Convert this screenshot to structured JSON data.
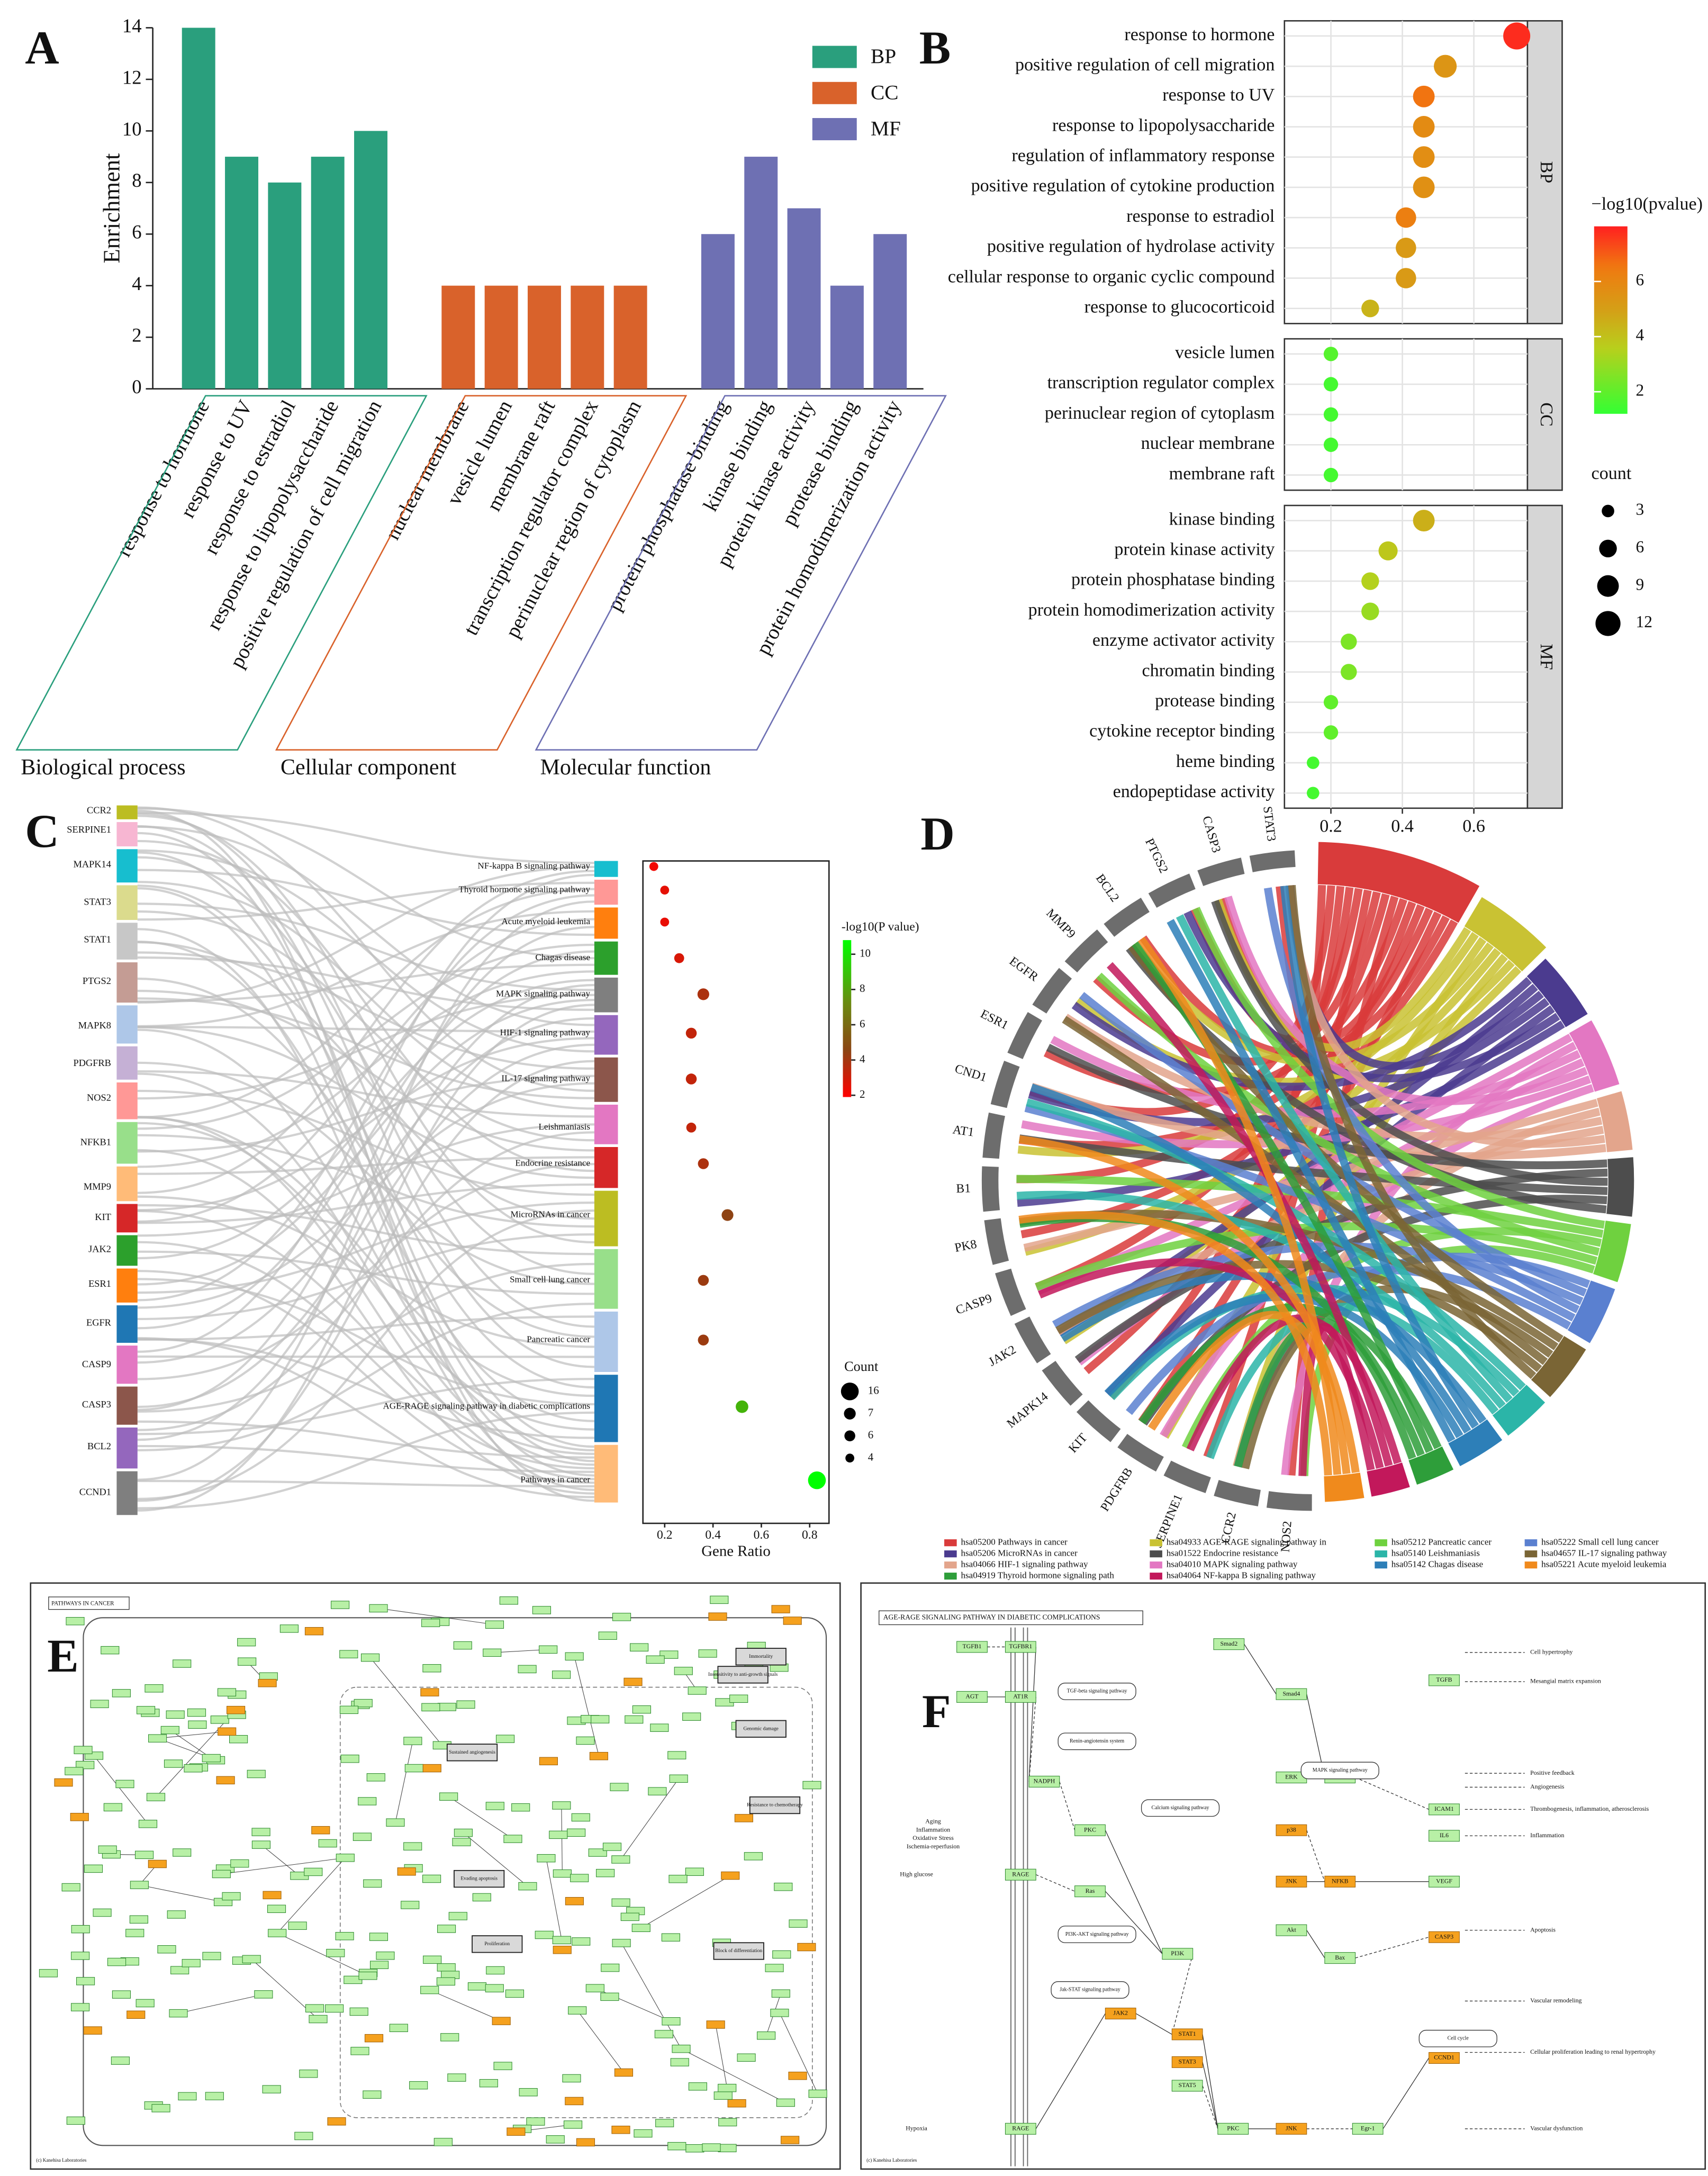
{
  "chart_data": [
    {
      "type": "bar",
      "panel": "A",
      "ylabel": "Enrichment",
      "categories": [
        "response to hormone",
        "response to UV",
        "response to estradiol",
        "response to lipopolysaccharide",
        "positive regulation of cell migration",
        "nuclear membrane",
        "vesicle lumen",
        "membrane raft",
        "transcription regulator complex",
        "perinuclear region of cytoplasm",
        "protein phosphatase binding",
        "kinase binding",
        "protein kinase activity",
        "protease binding",
        "protein homodimerization activity"
      ],
      "series": [
        {
          "name": "BP",
          "color": "#2a9f7d",
          "values": [
            14,
            9,
            8,
            9,
            10,
            null,
            null,
            null,
            null,
            null,
            null,
            null,
            null,
            null,
            null
          ]
        },
        {
          "name": "CC",
          "color": "#d9622b",
          "values": [
            null,
            null,
            null,
            null,
            null,
            4,
            4,
            4,
            4,
            4,
            null,
            null,
            null,
            null,
            null
          ]
        },
        {
          "name": "MF",
          "color": "#6e70b3",
          "values": [
            null,
            null,
            null,
            null,
            null,
            null,
            null,
            null,
            null,
            null,
            6,
            9,
            7,
            4,
            6
          ]
        }
      ],
      "groups": [
        "Biological process",
        "Cellular component",
        "Molecular function"
      ],
      "ylim": [
        0,
        14
      ],
      "yticks": [
        0,
        2,
        4,
        6,
        8,
        10,
        12,
        14
      ],
      "legend": "upper right"
    },
    {
      "type": "dot",
      "panel": "B",
      "facets": [
        {
          "name": "BP",
          "categories": [
            "response to hormone",
            "positive regulation of cell migration",
            "response to UV",
            "response to lipopolysaccharide",
            "regulation of inflammatory response",
            "positive regulation of cytokine production",
            "response to estradiol",
            "positive regulation of hydrolase activity",
            "cellular response to organic cyclic compound",
            "response to glucocorticoid"
          ],
          "x": [
            0.72,
            0.52,
            0.46,
            0.46,
            0.46,
            0.46,
            0.41,
            0.41,
            0.41,
            0.31
          ],
          "pvalue": [
            7.8,
            5.4,
            6.6,
            5.8,
            5.7,
            5.6,
            6.3,
            5.2,
            5.2,
            4.4
          ],
          "count": [
            14,
            10,
            9,
            9,
            9,
            9,
            8,
            8,
            8,
            6
          ]
        },
        {
          "name": "CC",
          "categories": [
            "vesicle lumen",
            "transcription regulator complex",
            "perinuclear region of cytoplasm",
            "nuclear membrane",
            "membrane raft"
          ],
          "x": [
            0.2,
            0.2,
            0.2,
            0.2,
            0.2
          ],
          "pvalue": [
            1.8,
            1.5,
            1.5,
            1.5,
            1.5
          ],
          "count": [
            4,
            4,
            4,
            4,
            4
          ]
        },
        {
          "name": "MF",
          "categories": [
            "kinase binding",
            "protein kinase activity",
            "protein phosphatase binding",
            "protein homodimerization activity",
            "enzyme activator activity",
            "chromatin binding",
            "protease binding",
            "cytokine receptor binding",
            "heme binding",
            "endopeptidase activity"
          ],
          "x": [
            0.46,
            0.36,
            0.31,
            0.31,
            0.25,
            0.25,
            0.2,
            0.2,
            0.15,
            0.15
          ],
          "pvalue": [
            4.5,
            3.8,
            3.5,
            3,
            2.5,
            2.5,
            2,
            2,
            1.5,
            1.5
          ],
          "count": [
            9,
            7,
            6,
            6,
            5,
            5,
            4,
            4,
            3,
            3
          ]
        }
      ],
      "xlim": [
        0.07,
        0.75
      ],
      "xticks": [
        0.2,
        0.4,
        0.6
      ],
      "grid": true,
      "color_title": "−log10(pvalue)",
      "colorlim": [
        1.2,
        8
      ],
      "color_ticks": [
        2,
        4,
        6
      ],
      "size_title": "count",
      "size_ticks": [
        3,
        6,
        9,
        12
      ]
    },
    {
      "type": "sankey_dot",
      "panel": "C",
      "genes": [
        "CCR2",
        "SERPINE1",
        "MAPK14",
        "STAT3",
        "STAT1",
        "PTGS2",
        "MAPK8",
        "PDGFRB",
        "NOS2",
        "NFKB1",
        "MMP9",
        "KIT",
        "JAK2",
        "ESR1",
        "EGFR",
        "CASP9",
        "CASP3",
        "BCL2",
        "CCND1"
      ],
      "gene_colors": [
        "#bcbd22",
        "#f7b6d2",
        "#17becf",
        "#dbdb8d",
        "#c7c7c7",
        "#c49c94",
        "#aec7e8",
        "#c5b0d5",
        "#ff9896",
        "#98df8a",
        "#ffbb78",
        "#d62728",
        "#2ca02c",
        "#ff7f0e",
        "#1f77b4",
        "#e377c2",
        "#8c564b",
        "#9467bd",
        "#7f7f7f"
      ],
      "pathways": [
        "NF-kappa B signaling pathway",
        "Thyroid hormone signaling pathway",
        "Acute myeloid leukemia",
        "Chagas disease",
        "MAPK signaling pathway",
        "HIF-1 signaling pathway",
        "IL-17 signaling pathway",
        "Leishmaniasis",
        "Endocrine resistance",
        "MicroRNAs in cancer",
        "Small cell lung cancer",
        "Pancreatic cancer",
        "AGE-RAGE signaling pathway in diabetic complications",
        "Pathways in cancer"
      ],
      "pathway_colors": [
        "#17becf",
        "#ff9896",
        "#ff7f0e",
        "#2ca02c",
        "#7f7f7f",
        "#9467bd",
        "#8c564b",
        "#e377c2",
        "#d62728",
        "#bcbd22",
        "#98df8a",
        "#aec7e8",
        "#1f77b4",
        "#ffbb78"
      ],
      "x": [
        0.155,
        0.2,
        0.2,
        0.26,
        0.36,
        0.31,
        0.31,
        0.31,
        0.36,
        0.46,
        0.36,
        0.36,
        0.52,
        0.83
      ],
      "pvalue": [
        2.2,
        2.5,
        2.4,
        2.8,
        3.8,
        3.3,
        3.3,
        3.3,
        3.8,
        4.5,
        4.2,
        4.2,
        8.5,
        11
      ],
      "count": [
        4,
        4,
        4,
        5,
        7,
        6,
        6,
        5,
        6,
        7,
        6,
        6,
        8,
        16
      ],
      "xlabel": "Gene Ratio",
      "xlim": [
        0.11,
        0.88
      ],
      "xticks": [
        0.2,
        0.4,
        0.6,
        0.8
      ],
      "color_title": "-log10(P value)",
      "colorlim": [
        1.9,
        10.8
      ],
      "color_ticks": [
        2,
        4,
        6,
        8,
        10
      ],
      "size_title": "Count",
      "size_ticks": [
        16,
        7,
        6,
        4
      ]
    },
    {
      "type": "chord",
      "panel": "D",
      "genes": [
        "STAT3",
        "CASP3",
        "PTGS2",
        "BCL2",
        "MMP9",
        "EGFR",
        "ESR1",
        "CND1",
        "AT1",
        "B1",
        "PK8",
        "CASP9",
        "JAK2",
        "MAPK14",
        "KIT",
        "PDGFRB",
        "SERPINE1",
        "CCR2",
        "NOS2"
      ],
      "gene_color": "#6d6d6d",
      "pathways": [
        {
          "name": "hsa05200 Pathways in cancer",
          "color": "#d93b3b"
        },
        {
          "name": "hsa05206 MicroRNAs in cancer",
          "color": "#4b3b8f"
        },
        {
          "name": "hsa04066 HIF-1 signaling pathway",
          "color": "#e3a58c"
        },
        {
          "name": "hsa04919 Thyroid hormone signaling path",
          "color": "#2e9e3a"
        },
        {
          "name": "hsa04933 AGE-RAGE signaling pathway in",
          "color": "#c9c233"
        },
        {
          "name": "hsa01522 Endocrine resistance",
          "color": "#4d4d4d"
        },
        {
          "name": "hsa04010 MAPK signaling pathway",
          "color": "#e377c2"
        },
        {
          "name": "hsa04064 NF-kappa B signaling pathway",
          "color": "#c2185b"
        },
        {
          "name": "hsa05212 Pancreatic cancer",
          "color": "#6fd13f"
        },
        {
          "name": "hsa05140 Leishmaniasis",
          "color": "#2bb5a8"
        },
        {
          "name": "hsa05142 Chagas disease",
          "color": "#2d7fb8"
        },
        {
          "name": "hsa05222 Small cell lung cancer",
          "color": "#5a80d0"
        },
        {
          "name": "hsa04657 IL-17 signaling pathway",
          "color": "#7a6535"
        },
        {
          "name": "hsa05221 Acute myeloid leukemia",
          "color": "#f08a1c"
        }
      ]
    }
  ],
  "diagrams": [
    {
      "panel": "E",
      "title": "PATHWAYS IN CANCER",
      "processes": [
        "Evading apoptosis",
        "Proliferation",
        "Sustained angiogenesis",
        "Genomic damage",
        "Insensitivity to anti-growth signals",
        "Resistance to chemotherapy",
        "Block of differentiation",
        "Immortality"
      ],
      "footer": "(c) Kanehisa Laboratories"
    },
    {
      "panel": "F",
      "title": "AGE-RAGE SIGNALING PATHWAY IN DIABETIC COMPLICATIONS",
      "nodes": [
        {
          "label": "TGFB1",
          "highlight": false
        },
        {
          "label": "TGFBR1",
          "highlight": false
        },
        {
          "label": "AGT",
          "highlight": false
        },
        {
          "label": "AT1R",
          "highlight": false
        },
        {
          "label": "Smad2",
          "highlight": false
        },
        {
          "label": "Smad4",
          "highlight": false
        },
        {
          "label": "NADPH",
          "highlight": false
        },
        {
          "label": "PKC",
          "highlight": false
        },
        {
          "label": "Ras",
          "highlight": false
        },
        {
          "label": "PI3K",
          "highlight": false
        },
        {
          "label": "Akt",
          "highlight": false
        },
        {
          "label": "ERK",
          "highlight": false
        },
        {
          "label": "p38",
          "highlight": true
        },
        {
          "label": "JNK",
          "highlight": true
        },
        {
          "label": "NFKB",
          "highlight": true
        },
        {
          "label": "AP-1",
          "highlight": false
        },
        {
          "label": "STAT1",
          "highlight": true
        },
        {
          "label": "STAT3",
          "highlight": true
        },
        {
          "label": "STAT5",
          "highlight": false
        },
        {
          "label": "JAK2",
          "highlight": true
        },
        {
          "label": "CASP3",
          "highlight": true
        },
        {
          "label": "Bax",
          "highlight": false
        },
        {
          "label": "VEGF",
          "highlight": false
        },
        {
          "label": "TGFB",
          "highlight": false
        },
        {
          "label": "IL6",
          "highlight": false
        },
        {
          "label": "ICAM1",
          "highlight": false
        },
        {
          "label": "PKC",
          "highlight": false
        },
        {
          "label": "JNK",
          "highlight": true
        },
        {
          "label": "Egr-1",
          "highlight": false
        },
        {
          "label": "CCND1",
          "highlight": true
        },
        {
          "label": "RAGE",
          "highlight": false
        },
        {
          "label": "RAGE",
          "highlight": false
        }
      ],
      "pathways": [
        "TGF-beta signaling pathway",
        "Renin-angiotensin system",
        "Calcium signaling pathway",
        "MAPK signaling pathway",
        "PI3K-AKT signaling pathway",
        "Jak-STAT signaling pathway",
        "Cell cycle"
      ],
      "inputs": [
        "High glucose",
        "Hypoxia",
        "Aging",
        "Inflammation",
        "Oxidative Stress",
        "Ischemia-reperfusion"
      ],
      "outcomes": [
        "Cell hypertrophy",
        "Mesangial matrix expansion",
        "Positive feedback",
        "Angiogenesis",
        "Thrombogenesis, inflammation, atherosclerosis",
        "Inflammation",
        "Apoptosis",
        "Vascular remodeling",
        "Cellular proliferation leading to renal hypertrophy",
        "Vascular dysfunction"
      ],
      "footer": "(c) Kanehisa Laboratories"
    }
  ]
}
